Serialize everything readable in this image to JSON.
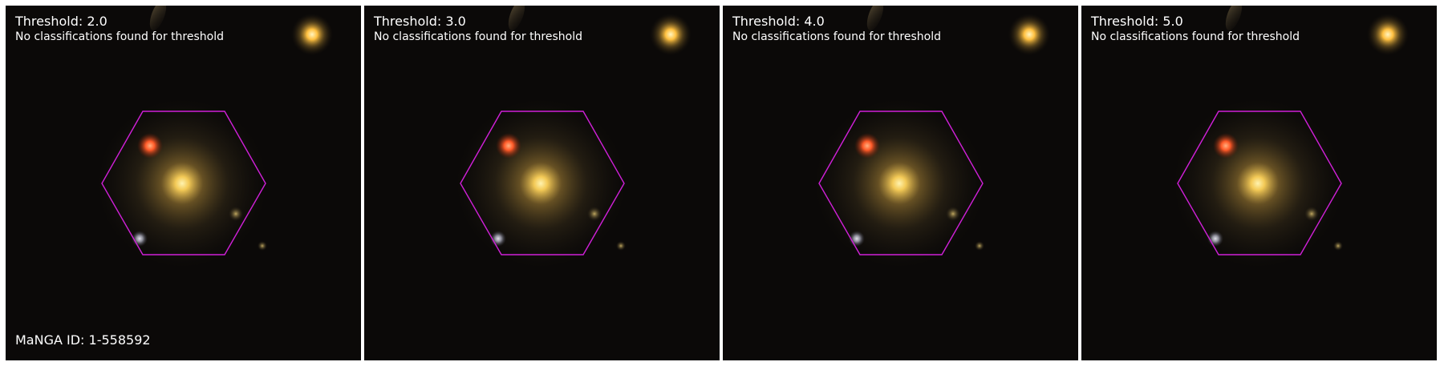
{
  "panels": [
    {
      "threshold": "Threshold: 2.0",
      "message": "No classifications found for threshold"
    },
    {
      "threshold": "Threshold: 3.0",
      "message": "No classifications found for threshold"
    },
    {
      "threshold": "Threshold: 4.0",
      "message": "No classifications found for threshold"
    },
    {
      "threshold": "Threshold: 5.0",
      "message": "No classifications found for threshold"
    }
  ],
  "manga_id": "MaNGA ID: 1-558592",
  "colors": {
    "hexagon": "#d020d8",
    "galaxy_core": "#ffd060",
    "red_star": "#ff5a28",
    "text": "#ffffff"
  }
}
